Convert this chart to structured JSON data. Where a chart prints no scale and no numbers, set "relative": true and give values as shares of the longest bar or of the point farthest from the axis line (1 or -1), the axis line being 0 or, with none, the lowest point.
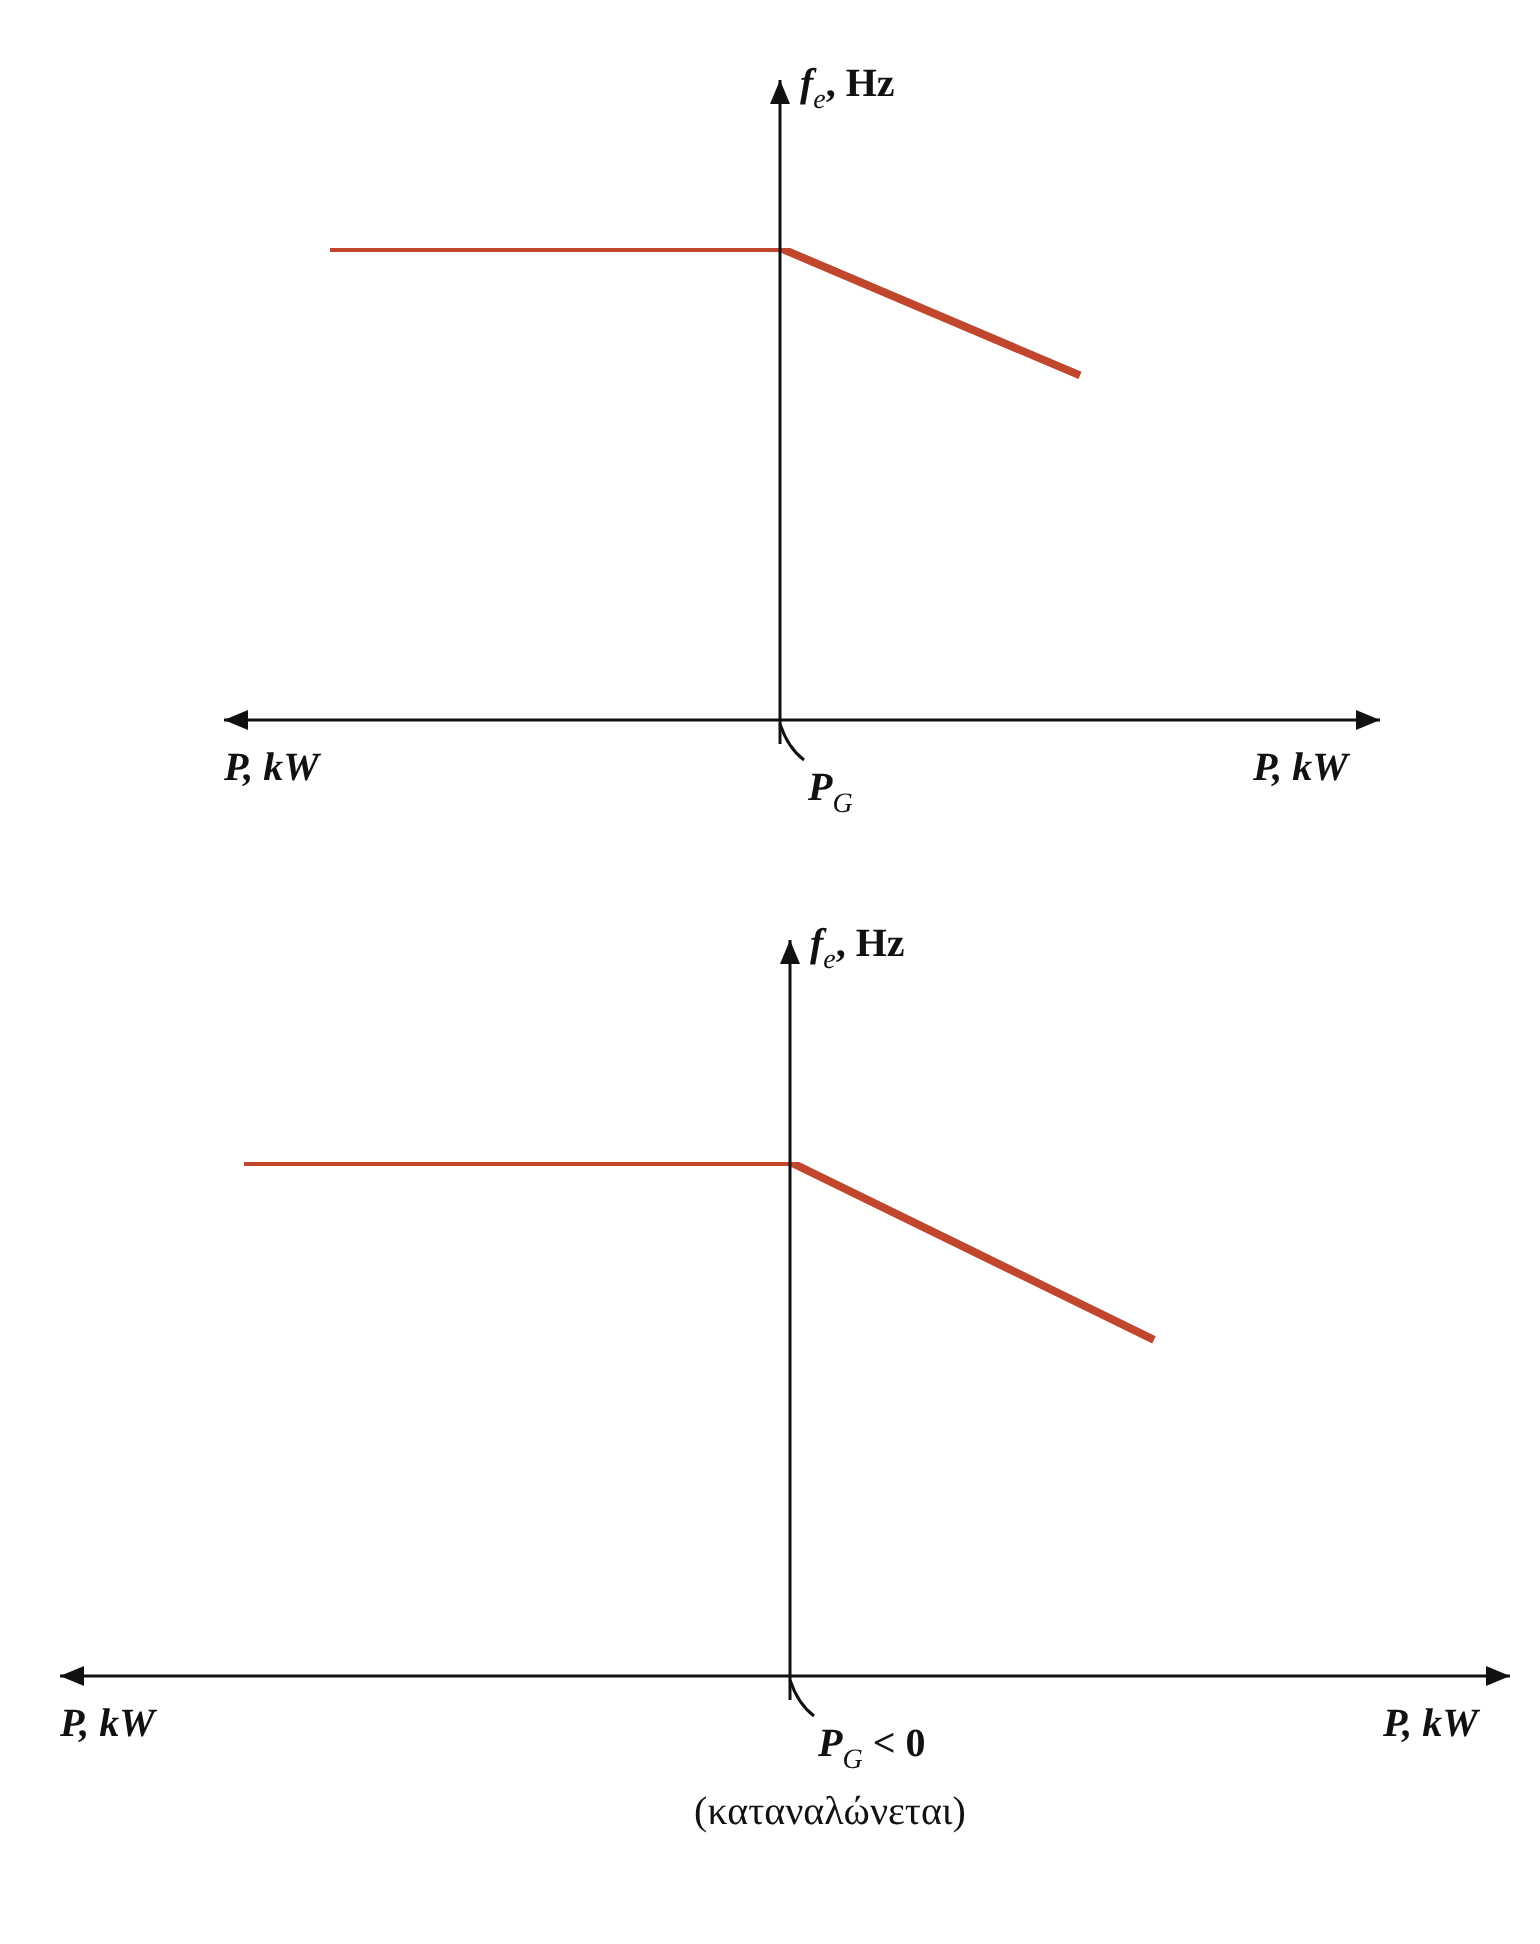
{
  "chart_data": [
    {
      "type": "line",
      "ylabel": "f$_{e}$, Hz",
      "xlabel": "P, kW",
      "annotations": [
        "P$_{G}$"
      ],
      "categories": [
        null,
        null,
        null,
        null,
        null,
        null
      ],
      "relative": true,
      "tick_labels": false,
      "marker": "none",
      "legend": false,
      "series": [
        {
          "color": "#c0462e",
          "values": [
            1,
            1,
            1,
            1,
            0.865,
            0.73
          ]
        }
      ]
    },
    {
      "type": "line",
      "ylabel": "f$_{e}$, Hz",
      "xlabel": "P, kW",
      "annotations": [
        "P$_{G}$ < 0",
        "(καταναλώνεται)"
      ],
      "categories": [
        null,
        null,
        null,
        null,
        null,
        null
      ],
      "relative": true,
      "tick_labels": false,
      "marker": "none",
      "legend": false,
      "series": [
        {
          "color": "#c0462e",
          "values": [
            1,
            1,
            1,
            1,
            0.827,
            0.654
          ]
        }
      ]
    }
  ]
}
